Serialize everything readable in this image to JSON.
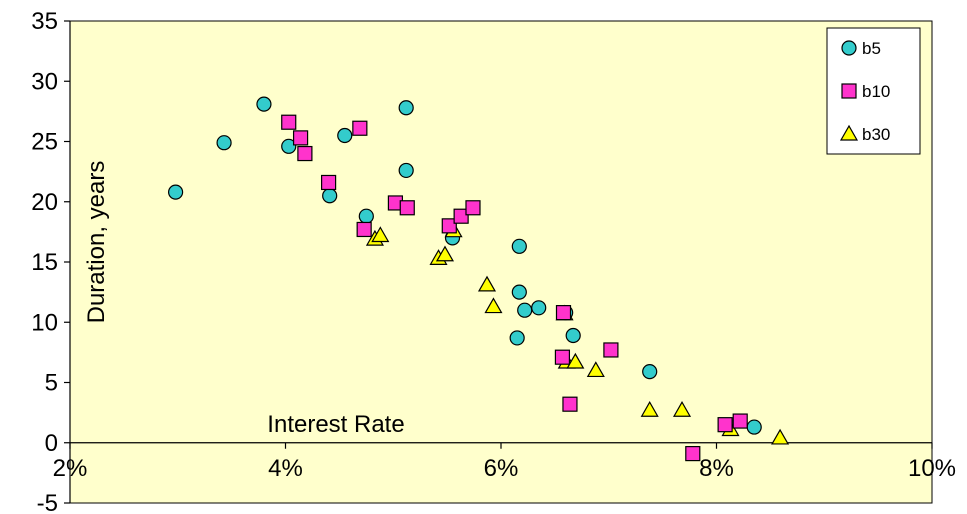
{
  "chart_data": {
    "type": "scatter",
    "title": "",
    "xlabel": "Interest Rate",
    "ylabel": "Duration, years",
    "xlim": [
      0.02,
      0.1
    ],
    "ylim": [
      -5,
      35
    ],
    "x_ticks": [
      0.02,
      0.04,
      0.06,
      0.08,
      0.1
    ],
    "x_tick_labels": [
      "2%",
      "4%",
      "6%",
      "8%",
      "10%"
    ],
    "y_ticks": [
      -5,
      0,
      5,
      10,
      15,
      20,
      25,
      30,
      35
    ],
    "y_tick_labels": [
      "-5",
      "0",
      "5",
      "10",
      "15",
      "20",
      "25",
      "30",
      "35"
    ],
    "grid": false,
    "plot_background": "#FFFFCC",
    "legend_position": "top-right",
    "series": [
      {
        "name": "b5",
        "marker": "circle",
        "color": "#33CCCC",
        "points": [
          [
            0.0298,
            20.8
          ],
          [
            0.0343,
            24.9
          ],
          [
            0.038,
            28.1
          ],
          [
            0.0403,
            24.6
          ],
          [
            0.0441,
            20.5
          ],
          [
            0.0455,
            25.5
          ],
          [
            0.0475,
            18.8
          ],
          [
            0.0512,
            27.8
          ],
          [
            0.0512,
            22.6
          ],
          [
            0.0555,
            17.0
          ],
          [
            0.0617,
            16.3
          ],
          [
            0.0617,
            12.5
          ],
          [
            0.0622,
            11.0
          ],
          [
            0.0635,
            11.2
          ],
          [
            0.0615,
            8.7
          ],
          [
            0.066,
            10.8
          ],
          [
            0.0667,
            8.9
          ],
          [
            0.0738,
            5.9
          ],
          [
            0.0835,
            1.3
          ]
        ]
      },
      {
        "name": "b10",
        "marker": "square",
        "color": "#FF33CC",
        "points": [
          [
            0.0403,
            26.6
          ],
          [
            0.0414,
            25.3
          ],
          [
            0.0418,
            24.0
          ],
          [
            0.044,
            21.6
          ],
          [
            0.0469,
            26.1
          ],
          [
            0.0473,
            17.7
          ],
          [
            0.0502,
            19.9
          ],
          [
            0.0513,
            19.5
          ],
          [
            0.0552,
            18.0
          ],
          [
            0.0563,
            18.8
          ],
          [
            0.0574,
            19.5
          ],
          [
            0.0658,
            10.8
          ],
          [
            0.0657,
            7.1
          ],
          [
            0.0664,
            3.2
          ],
          [
            0.0702,
            7.7
          ],
          [
            0.0778,
            -0.9
          ],
          [
            0.0808,
            1.5
          ],
          [
            0.0822,
            1.8
          ]
        ]
      },
      {
        "name": "b30",
        "marker": "triangle",
        "color": "#FFFF00",
        "points": [
          [
            0.0483,
            16.9
          ],
          [
            0.0488,
            17.2
          ],
          [
            0.0542,
            15.3
          ],
          [
            0.0548,
            15.6
          ],
          [
            0.0556,
            17.6
          ],
          [
            0.0587,
            13.1
          ],
          [
            0.0593,
            11.3
          ],
          [
            0.0659,
            10.7
          ],
          [
            0.0661,
            6.7
          ],
          [
            0.0669,
            6.7
          ],
          [
            0.0688,
            6.0
          ],
          [
            0.0738,
            2.7
          ],
          [
            0.0768,
            2.7
          ],
          [
            0.0813,
            1.1
          ],
          [
            0.0859,
            0.4
          ]
        ]
      }
    ]
  }
}
